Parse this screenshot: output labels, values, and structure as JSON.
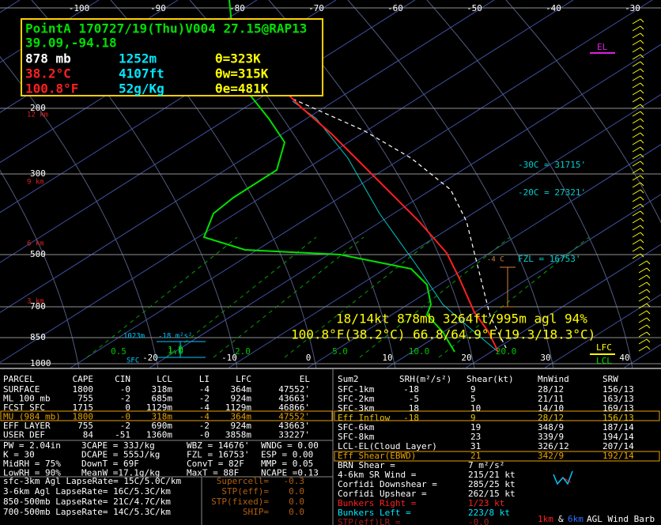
{
  "header": {
    "station": "PointA 170727/19(Thu)V004 27.15@RAP13",
    "latlon": "39.09,-94.18",
    "readout": [
      [
        "878 mb",
        "1252m",
        "θ=323K"
      ],
      [
        "38.2°C",
        "4107ft",
        "θw=315K"
      ],
      [
        "100.8°F",
        "52g/Kg",
        "θe=481K"
      ]
    ]
  },
  "temp_axis": [
    "-100",
    "-90",
    "-80",
    "-70",
    "-60",
    "-50",
    "-40",
    "-30"
  ],
  "pressure_labels": [
    "200",
    "300",
    "500",
    "700",
    "850",
    "1000"
  ],
  "height_labels": [
    "12 km",
    "9 km",
    "6 km",
    "3 km"
  ],
  "bottom_axis": [
    "-20",
    "-10",
    "0",
    "10",
    "20",
    "30",
    "40"
  ],
  "mixing_ratio_labels": [
    "0.5",
    "1.0",
    "2.0",
    "5.0",
    "10.0",
    "20.0"
  ],
  "annotations": {
    "el": "EL",
    "m30": "-30C = 31715'",
    "m20": "-20C = 27321'",
    "fzl": "FZL = 16753'",
    "m4": "-4 C",
    "lfc": "LFC",
    "lcl": "LCL",
    "sfc": "SFC",
    "helicity": "-18 m²s²",
    "hgt": "1023m",
    "hodo": "1.0"
  },
  "cursor": [
    "18/14kt  878mb  3264ft/995m agl  94%",
    "100.8°F(38.2°C) 66.8/64.9°F(19.3/18.3°C)"
  ],
  "parcel_table": {
    "header": [
      "PARCEL",
      "CAPE",
      "CIN",
      "LCL",
      "LI",
      "LFC",
      "EL"
    ],
    "rows": [
      [
        "SURFACE",
        "1800",
        "-0",
        "318m",
        "-4",
        "364m",
        "47552'"
      ],
      [
        "ML 100 mb",
        "755",
        "-2",
        "685m",
        "-2",
        "924m",
        "43663'"
      ],
      [
        "FCST SFC",
        "1715",
        "0",
        "1129m",
        "-4",
        "1129m",
        "46866'"
      ],
      [
        "MU (984 mb)",
        "1800",
        "-0",
        "318m",
        "-4",
        "364m",
        "47552'"
      ],
      [
        "EFF LAYER",
        "755",
        "-2",
        "690m",
        "-2",
        "924m",
        "43663'"
      ],
      [
        "USER DEF",
        "84",
        "-51",
        "1360m",
        "-0",
        "3858m",
        "33227'"
      ]
    ]
  },
  "params": [
    [
      "PW = 2.04in",
      "3CAPE = 33J/kg",
      "WBZ = 14676'",
      "WNDG = 0.00"
    ],
    [
      "K = 30",
      "DCAPE = 555J/kg",
      "FZL = 16753'",
      "ESP = 0.00"
    ],
    [
      "MidRH = 75%",
      "DownT = 69F",
      "ConvT = 82F",
      "MMP = 0.05"
    ],
    [
      "LowRH = 90%",
      "MeanW =17.1g/kg",
      "MaxT = 88F",
      "NCAPE =0.13"
    ]
  ],
  "lapse_rates": [
    "sfc-3km Agl LapseRate= 15C/5.0C/km",
    "3-6km Agl LapseRate= 16C/5.3C/km",
    "850-500mb LapseRate= 21C/4.7C/km",
    "700-500mb LapseRate= 14C/5.3C/km"
  ],
  "composites": [
    [
      "Supercell=",
      "-0.3"
    ],
    [
      "STP(eff)=",
      "0.0"
    ],
    [
      "STP(fixed)=",
      "0.0"
    ],
    [
      "SHIP=",
      "0.0"
    ]
  ],
  "kinematics": {
    "header": [
      "Sum2",
      "SRH(m²/s²)",
      "Shear(kt)",
      "MnWind",
      "SRW"
    ],
    "rows": [
      [
        "SFC-1km",
        "-18",
        "9",
        "28/12",
        "156/13"
      ],
      [
        "SFC-2km",
        "-5",
        "5",
        "21/11",
        "163/13"
      ],
      [
        "SFC-3km",
        "18",
        "10",
        "14/10",
        "169/13"
      ],
      [
        "Eff Inflow",
        "-18",
        "9",
        "28/12",
        "156/13"
      ],
      [
        "SFC-6km",
        null,
        "19",
        "348/9",
        "187/14"
      ],
      [
        "SFC-8km",
        null,
        "23",
        "339/9",
        "194/14"
      ],
      [
        "LCL-EL(Cloud Layer)",
        null,
        "31",
        "326/12",
        "207/14"
      ],
      [
        "Eff Shear(EBWD)",
        null,
        "21",
        "342/9",
        "192/14"
      ]
    ]
  },
  "kinematic_params": [
    [
      "BRN Shear =",
      "7 m²/s²"
    ],
    [
      "4-6km SR Wind =",
      "215/21 kt"
    ],
    [
      "Corfidi Downshear =",
      "285/25 kt"
    ],
    [
      "Corfidi Upshear =",
      "262/15 kt"
    ],
    [
      "Bunkers Right =",
      "1/23 kt"
    ],
    [
      "Bunkers Left =",
      "223/8 kt"
    ],
    [
      "STP(eff)LR =",
      "-0.0"
    ]
  ],
  "footer": [
    "1km",
    "&",
    "6km",
    "AGL Wind Barb"
  ]
}
